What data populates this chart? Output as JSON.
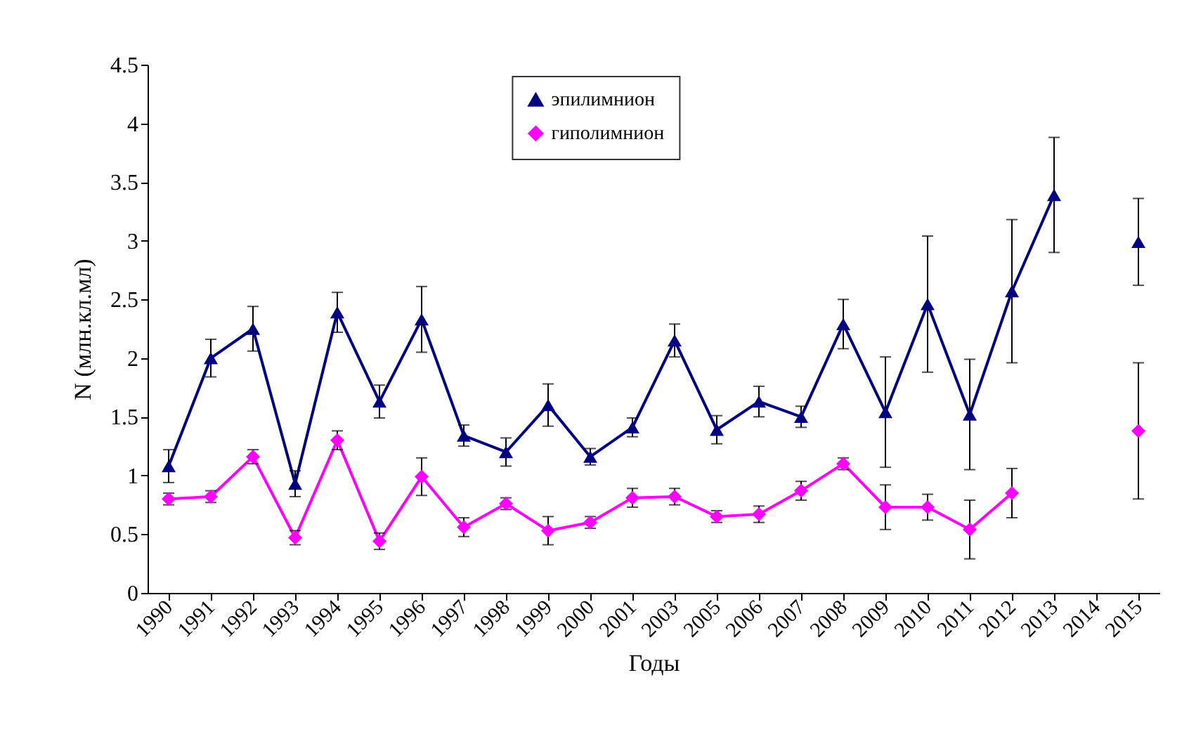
{
  "chart_data": {
    "type": "line",
    "xlabel": "Годы",
    "ylabel": "N (млн.кл.мл)",
    "categories": [
      "1990",
      "1991",
      "1992",
      "1993",
      "1994",
      "1995",
      "1996",
      "1997",
      "1998",
      "1999",
      "2000",
      "2001",
      "2003",
      "2005",
      "2006",
      "2007",
      "2008",
      "2009",
      "2010",
      "2011",
      "2012",
      "2013",
      "2014",
      "2015"
    ],
    "ylim": [
      0,
      4.5
    ],
    "yticks": [
      0,
      0.5,
      1,
      1.5,
      2,
      2.5,
      3,
      3.5,
      4,
      4.5
    ],
    "grid": false,
    "legend": "top",
    "series": [
      {
        "name": "эпилимнион",
        "color": "#000080",
        "marker": "triangle",
        "values": [
          1.08,
          2.0,
          2.25,
          0.93,
          2.39,
          1.63,
          2.33,
          1.34,
          1.2,
          1.6,
          1.16,
          1.41,
          2.15,
          1.39,
          1.63,
          1.5,
          2.29,
          1.54,
          2.46,
          1.52,
          2.57,
          3.39,
          null,
          2.99
        ],
        "errors": [
          0.14,
          0.16,
          0.19,
          0.11,
          0.17,
          0.14,
          0.28,
          0.09,
          0.12,
          0.18,
          0.07,
          0.08,
          0.14,
          0.12,
          0.13,
          0.09,
          0.21,
          0.47,
          0.58,
          0.47,
          0.61,
          0.49,
          null,
          0.37
        ]
      },
      {
        "name": "гиполимнион",
        "color": "#ff00ff",
        "marker": "diamond",
        "values": [
          0.8,
          0.82,
          1.16,
          0.47,
          1.3,
          0.44,
          0.99,
          0.56,
          0.76,
          0.53,
          0.6,
          0.81,
          0.82,
          0.65,
          0.67,
          0.87,
          1.1,
          0.73,
          0.73,
          0.54,
          0.85,
          null,
          null,
          1.38
        ],
        "errors": [
          0.05,
          0.05,
          0.06,
          0.06,
          0.08,
          0.07,
          0.16,
          0.08,
          0.05,
          0.12,
          0.05,
          0.08,
          0.07,
          0.05,
          0.07,
          0.08,
          0.05,
          0.19,
          0.11,
          0.25,
          0.21,
          null,
          null,
          0.58
        ]
      }
    ]
  }
}
